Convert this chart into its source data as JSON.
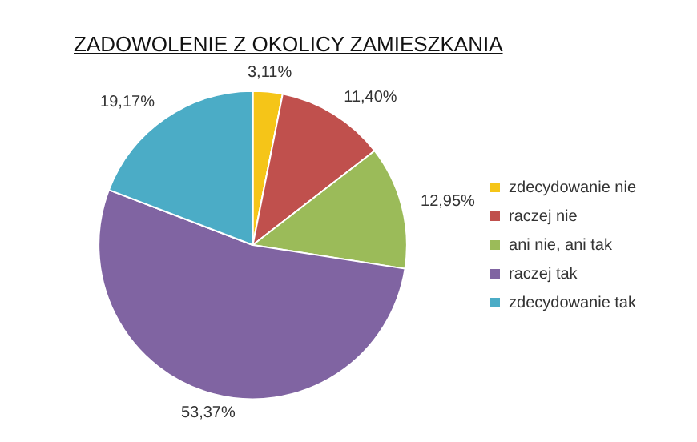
{
  "chart_data": {
    "type": "pie",
    "title": "ZADOWOLENIE Z OKOLICY ZAMIESZKANIA",
    "categories": [
      "zdecydowanie nie",
      "raczej nie",
      "ani nie, ani tak",
      "raczej tak",
      "zdecydowanie tak"
    ],
    "values": [
      3.11,
      11.4,
      12.95,
      53.37,
      19.17
    ],
    "value_labels": [
      "3,11%",
      "11,40%",
      "12,95%",
      "53,37%",
      "19,17%"
    ],
    "colors": [
      "#f5c518",
      "#c0504d",
      "#9bbb59",
      "#8064a2",
      "#4bacc6"
    ],
    "legend": "right"
  }
}
